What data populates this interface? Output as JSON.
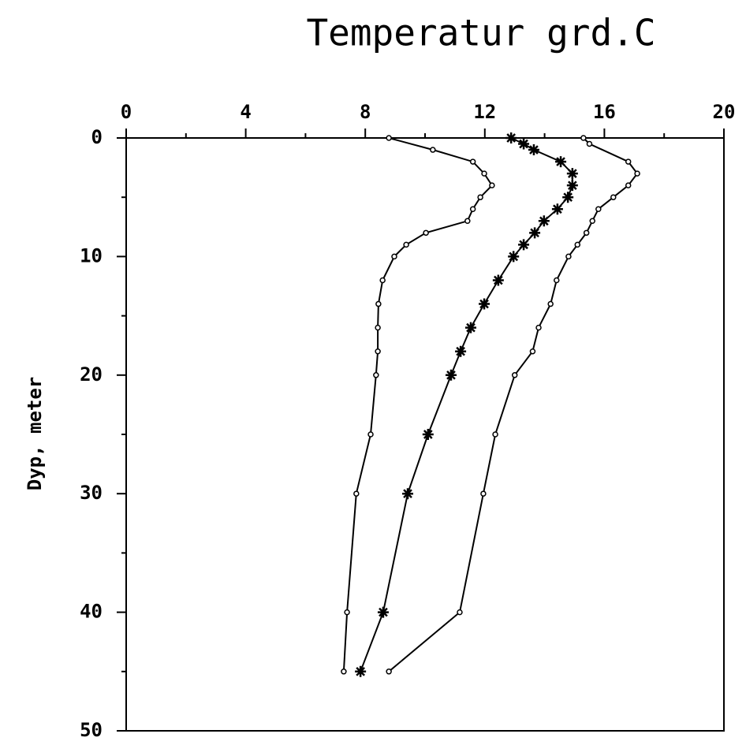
{
  "chart_data": {
    "type": "line",
    "title": "Temperatur grd.C",
    "y_label": "Dyp, meter",
    "xlim": [
      0,
      20
    ],
    "xticks": [
      0,
      4,
      8,
      12,
      16,
      20
    ],
    "xminor": [
      2,
      6,
      10,
      14,
      18
    ],
    "ylim": [
      0,
      50
    ],
    "yticks": [
      0,
      10,
      20,
      30,
      40,
      50
    ],
    "yminor": [
      5,
      15,
      25,
      35,
      45
    ],
    "y_inverted": true,
    "x_axis_top": true,
    "series": [
      {
        "color": "#000000",
        "marker": "circle",
        "x": [
          8.79,
          10.26,
          11.6,
          11.98,
          12.24,
          11.85,
          11.6,
          11.42,
          10.03,
          9.37,
          8.97,
          8.58,
          8.44,
          8.42,
          8.42,
          8.36,
          8.18,
          7.7,
          7.39,
          7.28
        ],
        "y": [
          0,
          1,
          2,
          3,
          4,
          5,
          6,
          7,
          8,
          9,
          10,
          12,
          14,
          16,
          18,
          20,
          25,
          30,
          40,
          45
        ]
      },
      {
        "color": "#000000",
        "marker": "asterisk",
        "x": [
          12.88,
          13.3,
          13.64,
          14.54,
          14.93,
          14.93,
          14.78,
          14.43,
          13.98,
          13.67,
          13.3,
          12.96,
          12.45,
          11.98,
          11.53,
          11.19,
          10.87,
          10.1,
          9.42,
          8.6,
          7.84
        ],
        "y": [
          0,
          0.5,
          1,
          2,
          3,
          4,
          5,
          6,
          7,
          8,
          9,
          10,
          12,
          14,
          16,
          18,
          20,
          25,
          30,
          40,
          45
        ]
      },
      {
        "color": "#000000",
        "marker": "circle",
        "x": [
          15.3,
          15.5,
          16.8,
          17.1,
          16.8,
          16.3,
          15.8,
          15.6,
          15.4,
          15.1,
          14.8,
          14.4,
          14.2,
          13.8,
          13.6,
          13.0,
          12.35,
          11.95,
          11.16,
          8.79
        ],
        "y": [
          0,
          0.5,
          2,
          3,
          4,
          5,
          6,
          7,
          8,
          9,
          10,
          12,
          14,
          16,
          18,
          20,
          25,
          30,
          40,
          45
        ]
      }
    ]
  }
}
